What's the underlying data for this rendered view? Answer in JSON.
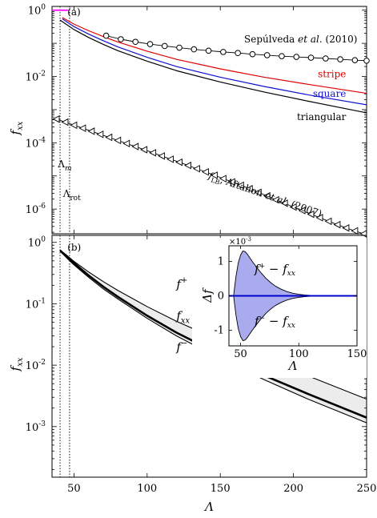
{
  "chart_data": [
    {
      "type": "line",
      "panel_label": "(a)",
      "ylabel": "f_xx",
      "yscale": "log",
      "xlim": [
        35,
        250
      ],
      "ylim": [
        1.8e-07,
        1.3
      ],
      "ytick_values": [
        1,
        0.01,
        0.0001,
        1e-06
      ],
      "ytick_labels": [
        {
          "base": "10",
          "exp": "0"
        },
        {
          "base": "10",
          "exp": "-2"
        },
        {
          "base": "10",
          "exp": "-4"
        },
        {
          "base": "10",
          "exp": "-6"
        }
      ],
      "vlines": [
        {
          "name": "Λ_m",
          "x": 40.5,
          "label_base": "Λ",
          "label_sub": "m"
        },
        {
          "name": "Λ_rot",
          "x": 47,
          "label_base": "Λ",
          "label_sub": "rot"
        }
      ],
      "series": [
        {
          "name": "stripe",
          "color": "#e00000",
          "x": [
            42,
            50,
            60,
            70,
            80,
            100,
            120,
            150,
            180,
            210,
            250
          ],
          "y": [
            0.6,
            0.38,
            0.24,
            0.16,
            0.11,
            0.058,
            0.033,
            0.017,
            0.0095,
            0.0058,
            0.0031
          ]
        },
        {
          "name": "square",
          "color": "#1010d0",
          "x": [
            42,
            50,
            60,
            70,
            80,
            100,
            120,
            150,
            180,
            210,
            250
          ],
          "y": [
            0.55,
            0.32,
            0.19,
            0.12,
            0.078,
            0.038,
            0.02,
            0.0095,
            0.005,
            0.0028,
            0.0014
          ]
        },
        {
          "name": "triangular",
          "color": "#000000",
          "x": [
            40.5,
            50,
            60,
            70,
            80,
            100,
            120,
            150,
            180,
            210,
            250
          ],
          "y": [
            0.5,
            0.26,
            0.15,
            0.093,
            0.06,
            0.029,
            0.015,
            0.0068,
            0.0034,
            0.0018,
            0.0008
          ]
        },
        {
          "name": "pink",
          "color": "#ff00ff",
          "x": [
            35,
            46
          ],
          "y": [
            1.0,
            1.0
          ]
        },
        {
          "name": "Sepúlveda et al. (2010)",
          "color": "#000000",
          "marker": "circle",
          "x": [
            72,
            82,
            92,
            102,
            112,
            122,
            132,
            142,
            152,
            162,
            172,
            182,
            192,
            202,
            212,
            222,
            232,
            242,
            250
          ],
          "y": [
            0.17,
            0.133,
            0.111,
            0.095,
            0.083,
            0.074,
            0.066,
            0.06,
            0.055,
            0.051,
            0.047,
            0.044,
            0.041,
            0.039,
            0.037,
            0.035,
            0.033,
            0.031,
            0.03
          ]
        },
        {
          "name": "f_LB, Aftalion et al. (2007)",
          "color": "#000000",
          "marker": "triangle-left",
          "x": [
            38,
            44,
            50,
            56,
            62,
            68,
            74,
            80,
            86,
            92,
            98,
            104,
            110,
            116,
            122,
            128,
            134,
            140,
            146,
            152,
            158,
            164,
            170,
            176,
            182,
            188,
            194,
            200,
            206,
            212,
            218,
            224,
            230,
            236,
            242,
            248
          ],
          "y": [
            0.00052,
            0.00042,
            0.00034,
            0.000275,
            0.000223,
            0.00018,
            0.000146,
            0.000118,
            9.5e-05,
            7.7e-05,
            6.2e-05,
            5e-05,
            4e-05,
            3.2e-05,
            2.6e-05,
            2.07e-05,
            1.65e-05,
            1.32e-05,
            1.05e-05,
            8.3e-06,
            6.6e-06,
            5.2e-06,
            4.1e-06,
            3.2e-06,
            2.5e-06,
            1.9e-06,
            1.5e-06,
            1.15e-06,
            9e-07,
            7e-07,
            5.5e-07,
            4.3e-07,
            3.4e-07,
            2.7e-07,
            2.2e-07,
            1.8e-07
          ]
        }
      ],
      "annotations": [
        {
          "id": "sepulveda",
          "text_main": "Sepúlveda ",
          "text_ital": "et al.",
          "text_tail": " (2010)",
          "x": 205,
          "y": 0.105
        },
        {
          "id": "stripe",
          "text": "stripe",
          "x": 236,
          "y": 0.0095
        },
        {
          "id": "square",
          "text": "square",
          "x": 236,
          "y": 0.0024
        },
        {
          "id": "triangular",
          "text": "triangular",
          "x": 236,
          "y": 0.00048
        },
        {
          "id": "flb",
          "text_main": "f",
          "text_sub": "LB",
          "text_tail": ", Aftalion ",
          "text_ital": "et al.",
          "text_tail2": " (2007)",
          "x": 180,
          "y": 2.2e-06
        }
      ]
    },
    {
      "type": "line",
      "panel_label": "(b)",
      "xlabel": "Λ",
      "ylabel": "f_xx",
      "yscale": "log",
      "xlim": [
        35,
        250
      ],
      "ylim": [
        0.00015,
        1.3
      ],
      "xticks": [
        50,
        100,
        150,
        200,
        250
      ],
      "ytick_values": [
        1,
        0.1,
        0.01,
        0.001
      ],
      "ytick_labels": [
        {
          "base": "10",
          "exp": "0"
        },
        {
          "base": "10",
          "exp": "-1"
        },
        {
          "base": "10",
          "exp": "-2"
        },
        {
          "base": "10",
          "exp": "-3"
        }
      ],
      "vlines": [
        {
          "name": "Λ_m",
          "x": 40.5
        },
        {
          "name": "Λ_rot",
          "x": 47
        }
      ],
      "series": [
        {
          "name": "f+",
          "label_base": "f",
          "label_sup": "+",
          "color": "#000000",
          "x": [
            40.5,
            45,
            50,
            60,
            70,
            80,
            100,
            120,
            150,
            180,
            210,
            250
          ],
          "y": [
            0.75,
            0.62,
            0.49,
            0.33,
            0.23,
            0.165,
            0.09,
            0.052,
            0.025,
            0.0125,
            0.0067,
            0.0028
          ]
        },
        {
          "name": "f_xx",
          "label_base": "f",
          "label_sub": "xx",
          "color": "#000000",
          "x": [
            40.5,
            45,
            50,
            60,
            70,
            80,
            100,
            120,
            150,
            180,
            210,
            250
          ],
          "y": [
            0.74,
            0.58,
            0.46,
            0.29,
            0.19,
            0.13,
            0.064,
            0.034,
            0.0148,
            0.0068,
            0.0034,
            0.0014
          ]
        },
        {
          "name": "f-",
          "label_base": "f",
          "label_sup": "−",
          "color": "#000000",
          "x": [
            40.5,
            45,
            50,
            60,
            70,
            80,
            100,
            120,
            150,
            180,
            210,
            250
          ],
          "y": [
            0.73,
            0.56,
            0.43,
            0.27,
            0.175,
            0.12,
            0.058,
            0.03,
            0.0128,
            0.0058,
            0.0028,
            0.00115
          ]
        }
      ],
      "series_labels": [
        {
          "series": "f+",
          "x": 120,
          "y": 0.18
        },
        {
          "series": "f_xx",
          "x": 120,
          "y": 0.055
        },
        {
          "series": "f-",
          "x": 120,
          "y": 0.017
        }
      ]
    },
    {
      "type": "area",
      "inset_of": "(b)",
      "xlabel": "Λ",
      "ylabel": "Δf",
      "xlim": [
        40,
        150
      ],
      "ylim": [
        -1.45,
        1.45
      ],
      "yscale_multiplier_label": {
        "base": "×10",
        "exp": "-3"
      },
      "xticks": [
        50,
        100,
        150
      ],
      "yticks": [
        -1,
        0,
        1
      ],
      "fill_color": "#aaaaee",
      "line_color": "#0000cc",
      "series": [
        {
          "name": "f+ − f_xx",
          "label": "f⁺ − fxx",
          "x": [
            44,
            46,
            48,
            50,
            52,
            54,
            56,
            58,
            60,
            64,
            68,
            72,
            76,
            80,
            85,
            90,
            95,
            100,
            105,
            110,
            115,
            120,
            125,
            130
          ],
          "y": [
            0.0,
            0.55,
            0.95,
            1.18,
            1.3,
            1.28,
            1.2,
            1.1,
            1.0,
            0.82,
            0.65,
            0.5,
            0.38,
            0.28,
            0.19,
            0.12,
            0.075,
            0.045,
            0.025,
            0.012,
            0.006,
            0.003,
            0.001,
            0.0
          ]
        },
        {
          "name": "f- − f_xx",
          "label": "f⁻ − fxx",
          "x": [
            44,
            46,
            48,
            50,
            52,
            54,
            56,
            58,
            60,
            64,
            68,
            72,
            76,
            80,
            85,
            90,
            95,
            100,
            105,
            110,
            115,
            120,
            125,
            130
          ],
          "y": [
            0.0,
            -0.55,
            -0.95,
            -1.18,
            -1.3,
            -1.28,
            -1.2,
            -1.1,
            -1.0,
            -0.82,
            -0.65,
            -0.5,
            -0.38,
            -0.28,
            -0.19,
            -0.12,
            -0.075,
            -0.045,
            -0.025,
            -0.012,
            -0.006,
            -0.003,
            -0.001,
            0.0
          ]
        }
      ],
      "labels": [
        {
          "series": "f+ − f_xx",
          "base": "f",
          "sup": "+",
          "mid": " − f",
          "sub": "xx",
          "x": 62,
          "y": 0.75
        },
        {
          "series": "f- − f_xx",
          "base": "f",
          "sup": "−",
          "mid": " − f",
          "sub": "xx",
          "x": 62,
          "y": -0.75
        }
      ]
    }
  ]
}
